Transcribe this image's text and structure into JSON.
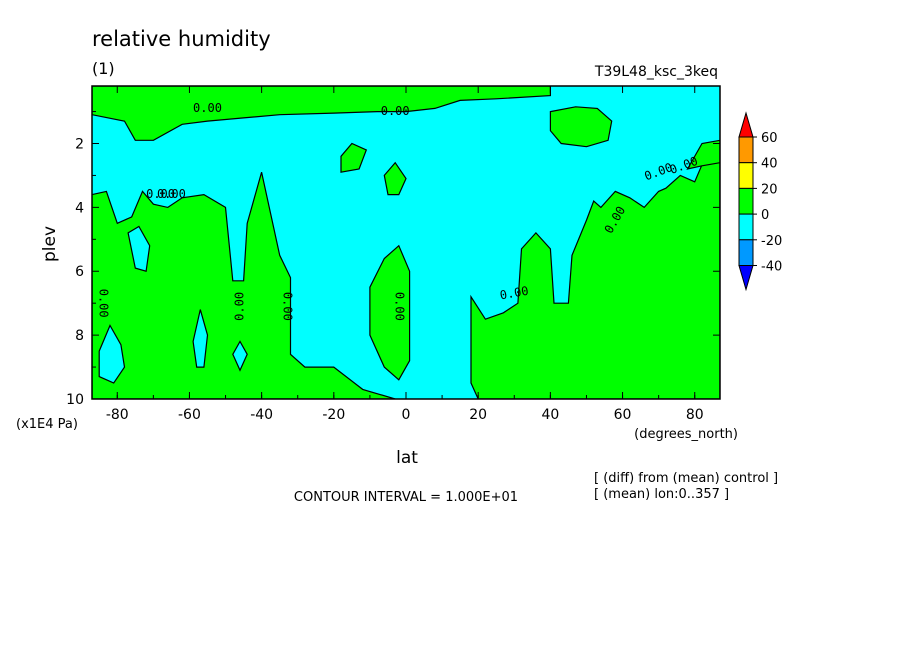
{
  "chart_data": {
    "type": "heatmap",
    "title": "relative humidity",
    "subtitle": "(1)",
    "run_label": "T39L48_ksc_3keq",
    "xlabel": "lat",
    "x_units": "(degrees_north)",
    "ylabel": "plev",
    "y_units": "(x1E4 Pa)",
    "xlim": [
      -87,
      87
    ],
    "ylim": [
      10,
      0.2
    ],
    "x_ticks": [
      "-80",
      "-60",
      "-40",
      "-20",
      "0",
      "20",
      "40",
      "60",
      "80"
    ],
    "y_ticks": [
      "2",
      "4",
      "6",
      "8",
      "10"
    ],
    "contour_interval": "CONTOUR INTERVAL = 1.000E+01",
    "contour_labels": [
      "0.00",
      "0.00",
      "0.00",
      "0.00",
      "0.00",
      "0.00",
      "0.00",
      "0.00",
      "0.00",
      "0.00",
      "0.00",
      "0.00"
    ],
    "notes": [
      "[ (diff) from (mean) control ]",
      "[ (mean) lon:0..357 ]"
    ],
    "colorbar": {
      "labels": [
        "60",
        "40",
        "20",
        "0",
        "-20",
        "-40"
      ],
      "levels": [
        {
          "range": "> 60",
          "color": "#ff0000"
        },
        {
          "range": "40 to 60",
          "color": "#ff9900"
        },
        {
          "range": "20 to 40",
          "color": "#ffff00"
        },
        {
          "range": "0 to 20",
          "color": "#00ff00"
        },
        {
          "range": "-20 to 0",
          "color": "#00ffff"
        },
        {
          "range": "-40 to -20",
          "color": "#0099ff"
        },
        {
          "range": "< -40",
          "color": "#0000ff"
        }
      ]
    },
    "field_summary": {
      "background_level": "-20 to 0",
      "positive_regions": [
        "upper layer band from -87 to 40 lat near 0.2-1 plev",
        "southern flank -87 to -35 lat between 3.5 and 10 plev",
        "equatorial tongue -10 to 2 lat between 5 and 9 plev",
        "northern region 20 to 87 lat between 2.5 and 10 plev",
        "isolated cell near 40-55 lat at 1-2 plev"
      ]
    }
  }
}
